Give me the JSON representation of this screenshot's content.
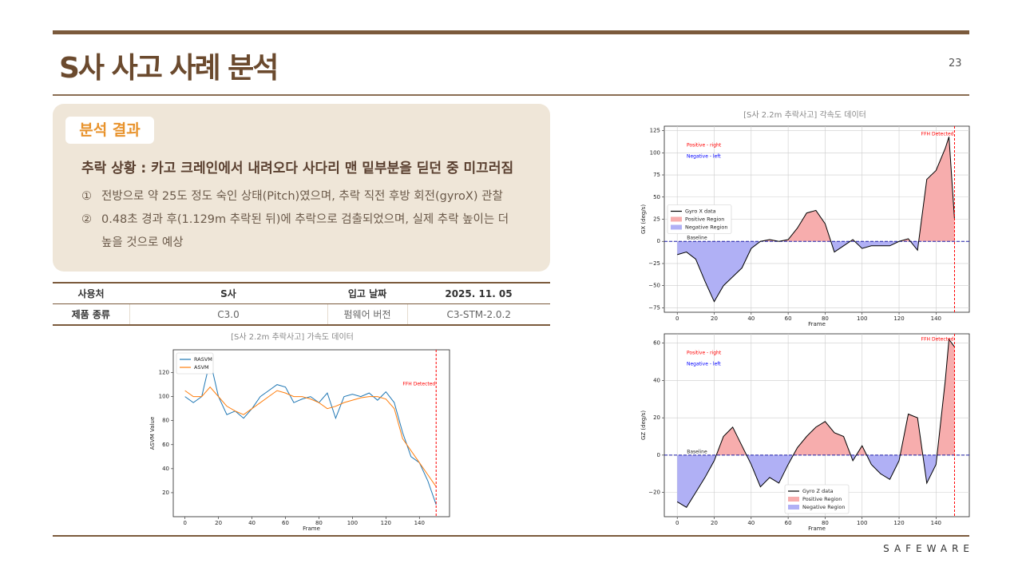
{
  "header": {
    "title": "S사 사고 사례 분석",
    "page": "23"
  },
  "result": {
    "label": "분석 결과",
    "headline": "추락 상황 : 카고 크레인에서 내려오다 사다리 맨 밑부분을 딛던 중 미끄러짐",
    "items": [
      {
        "marker": "①",
        "text": "전방으로 약 25도 정도 숙인 상태(Pitch)였으며, 추락 직전 후방 회전(gyroX) 관찰"
      },
      {
        "marker": "②",
        "text": "0.48초 경과 후(1.129m 추락된 뒤)에 추락으로 검출되었으며, 실제 추락 높이는 더 높을 것으로 예상"
      }
    ]
  },
  "table": {
    "rows": [
      [
        "사용처",
        "S사",
        "입고 날짜",
        "2025. 11. 05"
      ],
      [
        "제품 종류",
        "C3.0",
        "펌웨어 버전",
        "C3-STM-2.0.2"
      ]
    ]
  },
  "chart_data": [
    {
      "type": "line",
      "title": "[S사 2.2m 추락사고] 가속도 데이터",
      "x_label": "Frame",
      "y_label": "ASVM Value",
      "x": [
        0,
        5,
        10,
        15,
        20,
        25,
        30,
        35,
        40,
        45,
        50,
        55,
        60,
        65,
        70,
        75,
        80,
        85,
        90,
        95,
        100,
        105,
        110,
        115,
        120,
        125,
        130,
        135,
        140,
        145,
        150
      ],
      "series": [
        {
          "name": "RASVM",
          "color": "#1f77b4",
          "values": [
            100,
            95,
            100,
            130,
            100,
            85,
            88,
            82,
            90,
            100,
            105,
            110,
            108,
            95,
            98,
            100,
            95,
            103,
            82,
            100,
            102,
            100,
            103,
            97,
            104,
            95,
            70,
            50,
            45,
            30,
            10
          ]
        },
        {
          "name": "ASVM",
          "color": "#ff7f0e",
          "values": [
            105,
            100,
            100,
            108,
            100,
            92,
            88,
            85,
            90,
            95,
            100,
            105,
            103,
            100,
            100,
            98,
            95,
            90,
            92,
            95,
            97,
            99,
            100,
            100,
            98,
            90,
            65,
            55,
            45,
            35,
            25
          ]
        }
      ],
      "xlim": [
        -7,
        158
      ],
      "ylim": [
        0,
        139
      ],
      "xticks": [
        0,
        20,
        40,
        60,
        80,
        100,
        120,
        140
      ],
      "yticks": [
        20,
        40,
        60,
        80,
        100,
        120
      ],
      "grid": false,
      "legend": "upper left",
      "events": [
        {
          "x": 150,
          "label": "FFH Detected",
          "color": "red"
        }
      ]
    },
    {
      "type": "line",
      "title": "[S사 2.2m 추락사고] 각속도 데이터",
      "x_label": "Frame",
      "y_label": "GX (deg/s)",
      "x": [
        0,
        5,
        10,
        15,
        20,
        25,
        30,
        35,
        40,
        45,
        50,
        55,
        60,
        65,
        70,
        75,
        80,
        85,
        90,
        95,
        100,
        105,
        110,
        115,
        120,
        125,
        130,
        135,
        140,
        145,
        147,
        150
      ],
      "series": [
        {
          "name": "Gyro X data",
          "color": "#000000",
          "values": [
            -15,
            -12,
            -20,
            -45,
            -68,
            -50,
            -40,
            -30,
            -8,
            0,
            2,
            0,
            2,
            15,
            32,
            35,
            20,
            -12,
            -5,
            2,
            -8,
            -5,
            -5,
            -5,
            0,
            3,
            -10,
            70,
            80,
            105,
            118,
            25
          ]
        }
      ],
      "regions": [
        {
          "name": "Positive Region",
          "color": "#f7adad"
        },
        {
          "name": "Negative Region",
          "color": "#b0b0f5"
        }
      ],
      "baseline": {
        "value": 0,
        "label": "Baseline",
        "color": "#1a1aa6"
      },
      "notes": [
        {
          "text": "Positive - right",
          "color": "red"
        },
        {
          "text": "Negative - left",
          "color": "blue"
        }
      ],
      "xlim": [
        -7,
        158
      ],
      "ylim": [
        -80,
        130
      ],
      "xticks": [
        0,
        20,
        40,
        60,
        80,
        100,
        120,
        140
      ],
      "yticks": [
        {
          "value": -75,
          "label": "−75"
        },
        {
          "value": -50,
          "label": "−50"
        },
        {
          "value": -25,
          "label": "−25"
        },
        0,
        25,
        50,
        75,
        100,
        125
      ],
      "grid": true,
      "legend": "center left",
      "events": [
        {
          "x": 150,
          "label": "FFH Detected",
          "color": "red"
        }
      ]
    },
    {
      "type": "line",
      "x_label": "Frame",
      "y_label": "GZ (deg/s)",
      "x": [
        0,
        5,
        10,
        15,
        20,
        25,
        30,
        35,
        40,
        45,
        50,
        55,
        60,
        65,
        70,
        75,
        80,
        85,
        90,
        95,
        100,
        105,
        110,
        115,
        120,
        125,
        130,
        135,
        140,
        145,
        147,
        150
      ],
      "series": [
        {
          "name": "Gyro Z data",
          "color": "#000000",
          "values": [
            -25,
            -28,
            -20,
            -12,
            -3,
            10,
            15,
            5,
            -5,
            -17,
            -12,
            -15,
            -5,
            4,
            10,
            15,
            18,
            12,
            10,
            -3,
            5,
            -5,
            -10,
            -13,
            -3,
            22,
            20,
            -15,
            -5,
            40,
            62,
            58
          ]
        }
      ],
      "regions": [
        {
          "name": "Positive Region",
          "color": "#f7adad"
        },
        {
          "name": "Negative Region",
          "color": "#b0b0f5"
        }
      ],
      "baseline": {
        "value": 0,
        "label": "Baseline",
        "color": "#1a1aa6"
      },
      "notes": [
        {
          "text": "Positive - right",
          "color": "red"
        },
        {
          "text": "Negative - left",
          "color": "blue"
        }
      ],
      "xlim": [
        -7,
        158
      ],
      "ylim": [
        -33,
        65
      ],
      "xticks": [
        0,
        20,
        40,
        60,
        80,
        100,
        120,
        140
      ],
      "yticks": [
        {
          "value": -20,
          "label": "−20"
        },
        0,
        20,
        40,
        60
      ],
      "grid": true,
      "legend": "lower center",
      "events": [
        {
          "x": 150,
          "label": "FFH Detected",
          "color": "red"
        }
      ]
    }
  ],
  "footer": {
    "brand": "SAFEWARE"
  }
}
